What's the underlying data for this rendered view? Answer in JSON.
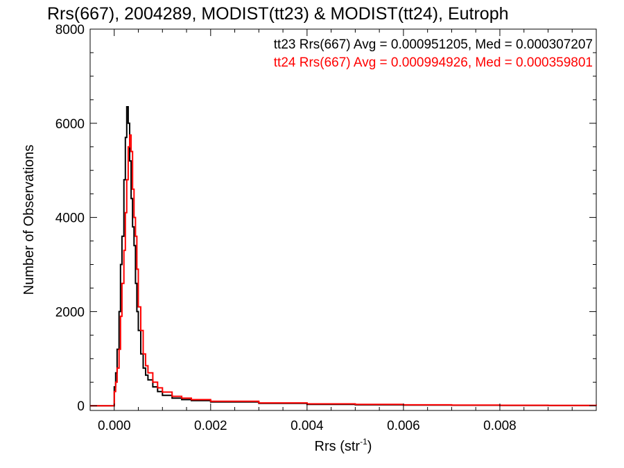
{
  "chart_data": {
    "type": "line",
    "title": "Rrs(667), 2004289, MODIST(tt23) & MODIST(tt24), Eutroph",
    "xlabel": "Rrs (str",
    "xlabel_sup": "-1",
    "xlabel_close": ")",
    "ylabel": "Number of Observations",
    "xlim": [
      -0.0005,
      0.01
    ],
    "ylim": [
      -100,
      8000
    ],
    "x_ticks": [
      {
        "value": 0.0,
        "label": "0.000"
      },
      {
        "value": 0.002,
        "label": "0.002"
      },
      {
        "value": 0.004,
        "label": "0.004"
      },
      {
        "value": 0.006,
        "label": "0.006"
      },
      {
        "value": 0.008,
        "label": "0.008"
      }
    ],
    "y_ticks": [
      {
        "value": 0,
        "label": "0"
      },
      {
        "value": 2000,
        "label": "2000"
      },
      {
        "value": 4000,
        "label": "4000"
      },
      {
        "value": 6000,
        "label": "6000"
      },
      {
        "value": 8000,
        "label": "8000"
      }
    ],
    "grid": false,
    "legend_position": "top-right",
    "series": [
      {
        "name": "tt23 Rrs(667) Avg = 0.000951205, Med = 0.000307207",
        "color": "#000000",
        "style": "step",
        "points": [
          [
            -0.0005,
            0
          ],
          [
            -5e-05,
            0
          ],
          [
            0.0,
            400
          ],
          [
            3e-05,
            700
          ],
          [
            6e-05,
            1200
          ],
          [
            0.0001,
            2000
          ],
          [
            0.00013,
            3000
          ],
          [
            0.00016,
            3600
          ],
          [
            0.0002,
            4800
          ],
          [
            0.00023,
            5700
          ],
          [
            0.00026,
            6350
          ],
          [
            0.00029,
            6000
          ],
          [
            0.00032,
            5200
          ],
          [
            0.00035,
            4400
          ],
          [
            0.00038,
            3800
          ],
          [
            0.00041,
            3400
          ],
          [
            0.00044,
            2600
          ],
          [
            0.00047,
            2000
          ],
          [
            0.0005,
            1600
          ],
          [
            0.00055,
            1100
          ],
          [
            0.0006,
            800
          ],
          [
            0.00065,
            650
          ],
          [
            0.0007,
            550
          ],
          [
            0.0008,
            400
          ],
          [
            0.0009,
            300
          ],
          [
            0.001,
            220
          ],
          [
            0.0012,
            160
          ],
          [
            0.0014,
            130
          ],
          [
            0.0016,
            110
          ],
          [
            0.002,
            80
          ],
          [
            0.003,
            50
          ],
          [
            0.004,
            30
          ],
          [
            0.005,
            20
          ],
          [
            0.006,
            15
          ],
          [
            0.007,
            10
          ],
          [
            0.008,
            8
          ],
          [
            0.009,
            5
          ],
          [
            0.01,
            3
          ]
        ]
      },
      {
        "name": "tt24 Rrs(667) Avg = 0.000994926, Med = 0.000359801",
        "color": "#ff0000",
        "style": "step",
        "points": [
          [
            -0.0005,
            0
          ],
          [
            -3e-05,
            0
          ],
          [
            0.0,
            300
          ],
          [
            3e-05,
            500
          ],
          [
            6e-05,
            800
          ],
          [
            0.0001,
            1200
          ],
          [
            0.00013,
            1900
          ],
          [
            0.00016,
            2600
          ],
          [
            0.0002,
            3300
          ],
          [
            0.00023,
            4100
          ],
          [
            0.00026,
            4800
          ],
          [
            0.00029,
            5500
          ],
          [
            0.00032,
            5750
          ],
          [
            0.00035,
            5400
          ],
          [
            0.00038,
            4600
          ],
          [
            0.00041,
            4000
          ],
          [
            0.00044,
            3600
          ],
          [
            0.00047,
            2900
          ],
          [
            0.0005,
            2100
          ],
          [
            0.00055,
            1600
          ],
          [
            0.0006,
            1100
          ],
          [
            0.00065,
            850
          ],
          [
            0.0007,
            700
          ],
          [
            0.0008,
            500
          ],
          [
            0.0009,
            380
          ],
          [
            0.001,
            290
          ],
          [
            0.0012,
            200
          ],
          [
            0.0014,
            160
          ],
          [
            0.0016,
            130
          ],
          [
            0.002,
            95
          ],
          [
            0.003,
            60
          ],
          [
            0.004,
            40
          ],
          [
            0.005,
            28
          ],
          [
            0.006,
            20
          ],
          [
            0.007,
            14
          ],
          [
            0.008,
            10
          ],
          [
            0.009,
            7
          ],
          [
            0.01,
            4
          ]
        ]
      }
    ]
  }
}
